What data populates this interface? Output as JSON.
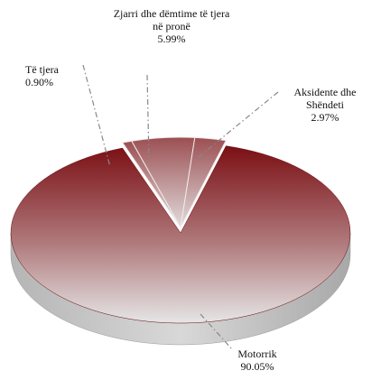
{
  "chart_data": {
    "type": "pie3d",
    "categories": [
      "Të tjera",
      "Zjarri dhe dëmtime të tjera në pronë",
      "Aksidente dhe Shëndeti",
      "Motorrik"
    ],
    "values": [
      0.9,
      5.99,
      2.97,
      90.05
    ],
    "value_labels": [
      "0.90%",
      "5.99%",
      "2.97%",
      "90.05%"
    ],
    "colors": [
      "#c9b9b9",
      "#bdb0b0",
      "#cfc4c4",
      "#7a0f14"
    ]
  }
}
